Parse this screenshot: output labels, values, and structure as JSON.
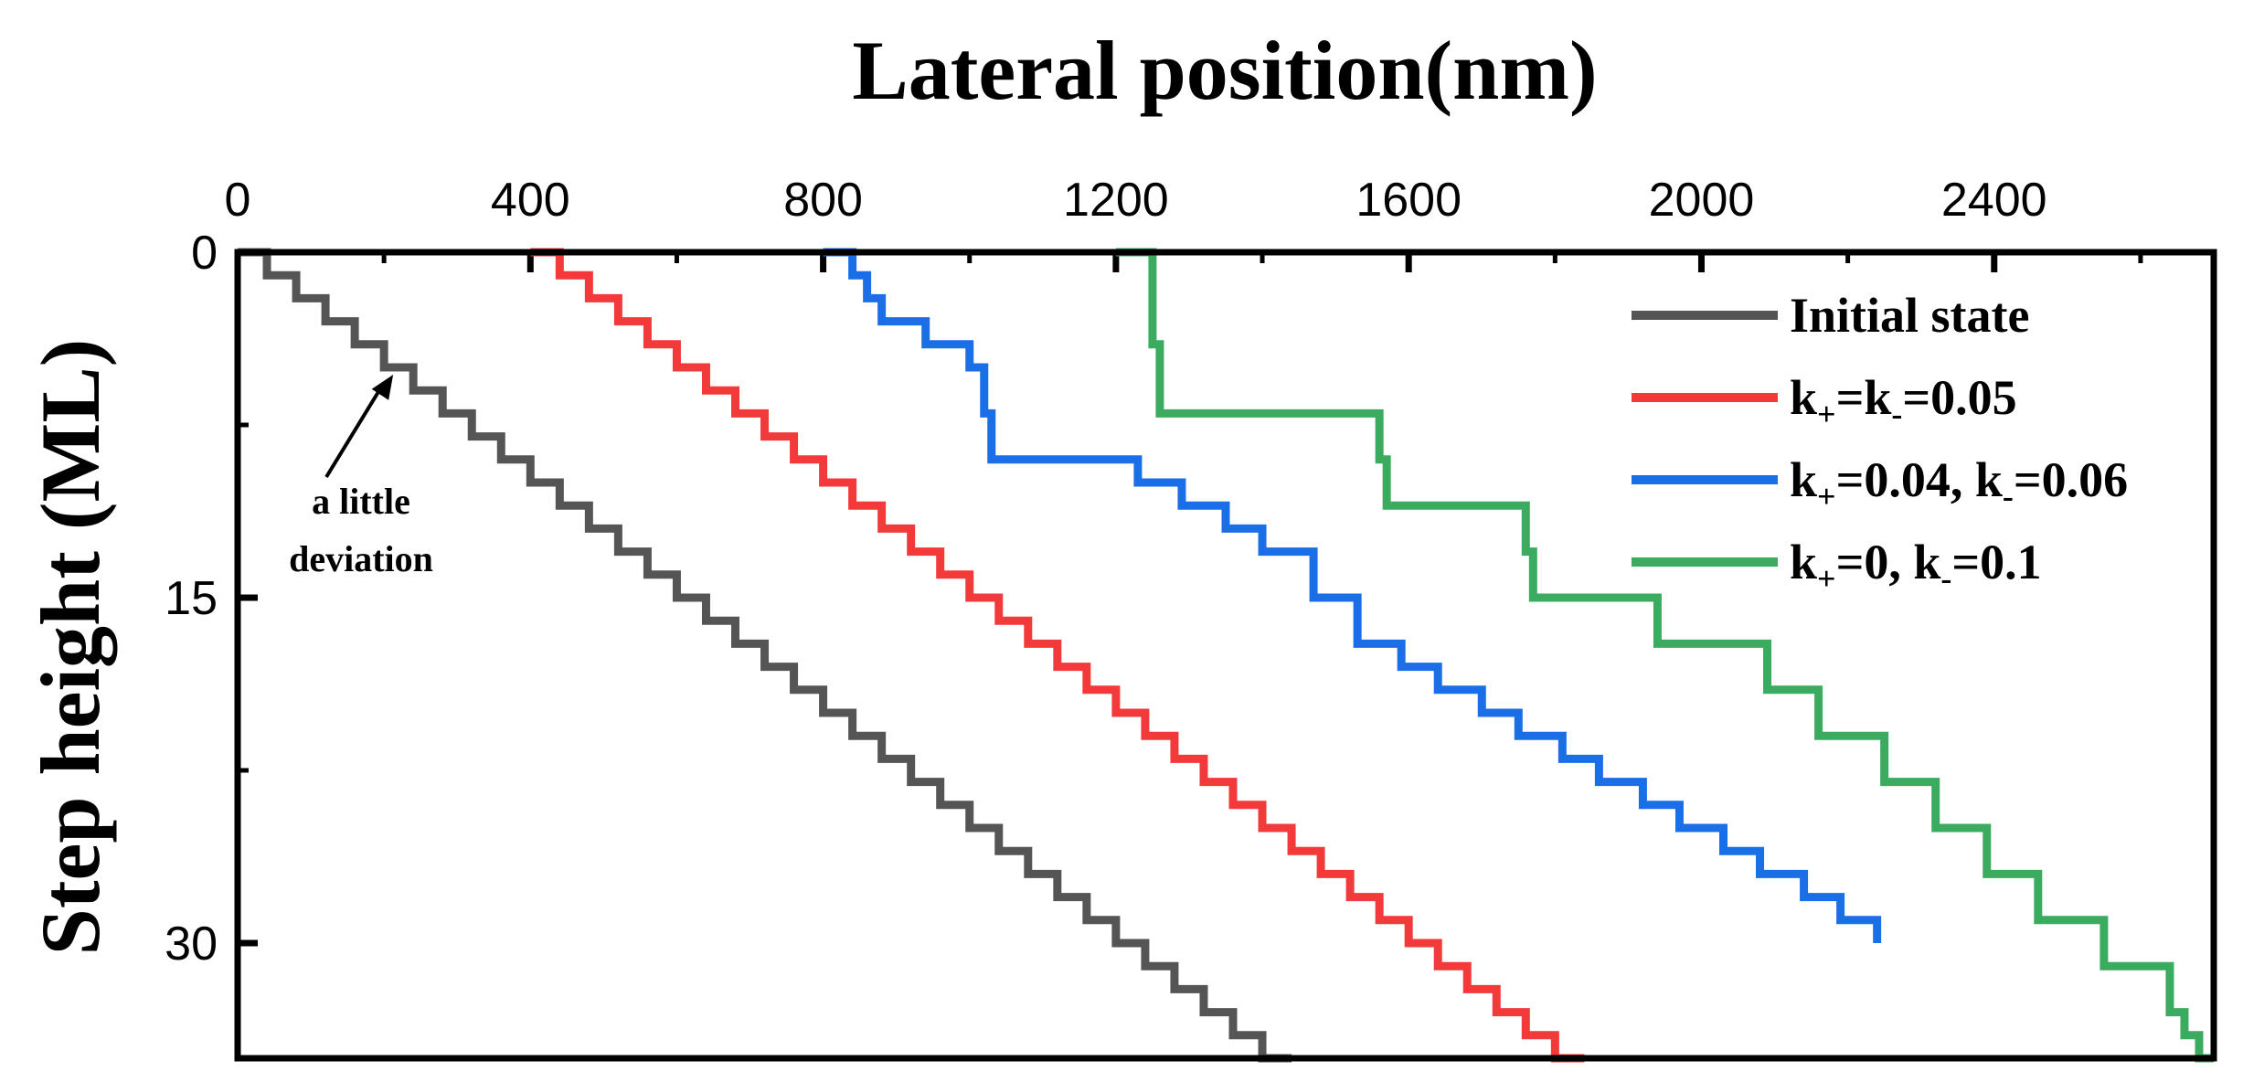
{
  "chart_data": {
    "type": "line",
    "title": "",
    "xlabel": "Lateral position(nm)",
    "ylabel": "Step height (ML)",
    "x_axis_position": "top",
    "y_axis_inverted": true,
    "xlim": [
      0,
      2700
    ],
    "ylim": [
      0,
      35
    ],
    "x_ticks": [
      0,
      400,
      800,
      1200,
      1600,
      2000,
      2400
    ],
    "y_ticks": [
      0,
      15,
      30
    ],
    "grid": false,
    "legend_position": "top-right",
    "series": [
      {
        "name": "Initial state",
        "color": "#555555",
        "x": [
          0,
          40,
          80,
          120,
          160,
          200,
          240,
          280,
          320,
          360,
          400,
          440,
          480,
          520,
          560,
          600,
          640,
          680,
          720,
          760,
          800,
          840,
          880,
          920,
          960,
          1000,
          1040,
          1080,
          1120,
          1160,
          1200,
          1240,
          1280,
          1320,
          1360,
          1400,
          1440
        ],
        "y": [
          0,
          1,
          2,
          3,
          4,
          5,
          6,
          7,
          8,
          9,
          10,
          11,
          12,
          13,
          14,
          15,
          16,
          17,
          18,
          19,
          20,
          21,
          22,
          23,
          24,
          25,
          26,
          27,
          28,
          29,
          30,
          31,
          32,
          33,
          34,
          35,
          35
        ]
      },
      {
        "name": "k₊=k₋=0.05",
        "label_parts": [
          "k",
          "+",
          "=k",
          "-",
          "=0.05"
        ],
        "color": "#f23a3a",
        "x": [
          400,
          440,
          480,
          520,
          560,
          600,
          640,
          680,
          720,
          760,
          800,
          840,
          880,
          920,
          960,
          1000,
          1040,
          1080,
          1120,
          1160,
          1200,
          1240,
          1280,
          1320,
          1360,
          1400,
          1440,
          1480,
          1520,
          1560,
          1600,
          1640,
          1680,
          1720,
          1760,
          1800,
          1840
        ],
        "y": [
          0,
          1,
          2,
          3,
          4,
          5,
          6,
          7,
          8,
          9,
          10,
          11,
          12,
          13,
          14,
          15,
          16,
          17,
          18,
          19,
          20,
          21,
          22,
          23,
          24,
          25,
          26,
          27,
          28,
          29,
          30,
          31,
          32,
          33,
          34,
          35,
          35
        ]
      },
      {
        "name": "k₊=0.04, k₋=0.06",
        "label_parts": [
          "k",
          "+",
          "=0.04, k",
          "-",
          "=0.06"
        ],
        "color": "#1a6fe6",
        "x": [
          800,
          840,
          860,
          880,
          940,
          1000,
          1020,
          1030,
          1230,
          1290,
          1350,
          1400,
          1470,
          1530,
          1590,
          1640,
          1700,
          1750,
          1810,
          1860,
          1920,
          1970,
          2030,
          2080,
          2140,
          2190,
          2240
        ],
        "y": [
          0,
          1,
          2,
          3,
          4,
          5,
          7,
          9,
          10,
          11,
          12,
          13,
          15,
          17,
          18,
          19,
          20,
          21,
          22,
          23,
          24,
          25,
          26,
          27,
          28,
          29,
          30
        ]
      },
      {
        "name": "k₊=0, k₋=0.1",
        "label_parts": [
          "k",
          "+",
          "=0, k",
          "-",
          "=0.1"
        ],
        "color": "#3bab5f",
        "x": [
          1200,
          1240,
          1250,
          1260,
          1540,
          1560,
          1570,
          1740,
          1760,
          1770,
          1930,
          1940,
          2080,
          2090,
          2150,
          2160,
          2240,
          2250,
          2310,
          2320,
          2380,
          2390,
          2450,
          2460,
          2540,
          2550,
          2620,
          2640,
          2660,
          2680,
          2700
        ],
        "y": [
          0,
          0,
          4,
          7,
          7,
          9,
          11,
          11,
          13,
          15,
          15,
          17,
          17,
          19,
          19,
          21,
          21,
          23,
          23,
          25,
          25,
          27,
          27,
          29,
          29,
          31,
          31,
          33,
          34,
          35,
          35
        ]
      }
    ],
    "annotation": {
      "lines": [
        "a little",
        "deviation"
      ],
      "points_to": {
        "x": 200,
        "y": 5
      }
    }
  }
}
